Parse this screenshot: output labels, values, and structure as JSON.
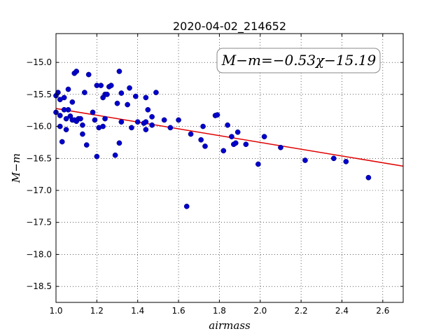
{
  "chart_data": {
    "type": "scatter",
    "title": "2020-04-02_214652",
    "xlabel": "airmass",
    "ylabel": "M−m",
    "xlim": [
      1.0,
      2.7
    ],
    "ylim": [
      -18.75,
      -14.55
    ],
    "y_inverted": true,
    "grid": true,
    "x_ticks": [
      1.0,
      1.2,
      1.4,
      1.6,
      1.8,
      2.0,
      2.2,
      2.4,
      2.6
    ],
    "x_tick_labels": [
      "1.0",
      "1.2",
      "1.4",
      "1.6",
      "1.8",
      "2.0",
      "2.2",
      "2.4",
      "2.6"
    ],
    "y_ticks": [
      -15.0,
      -15.5,
      -16.0,
      -16.5,
      -17.0,
      -17.5,
      -18.0,
      -18.5
    ],
    "y_tick_labels": [
      "−15.0",
      "−15.5",
      "−16.0",
      "−16.5",
      "−17.0",
      "−17.5",
      "−18.0",
      "−18.5"
    ],
    "annotation": "M−m=−0.53χ−15.19",
    "fit": {
      "slope": -0.53,
      "intercept": -15.19,
      "color": "#e00000"
    },
    "point_color": "#0000cc",
    "series": [
      {
        "points": [
          [
            1.0,
            -15.52
          ],
          [
            1.0,
            -15.78
          ],
          [
            1.01,
            -15.47
          ],
          [
            1.02,
            -15.83
          ],
          [
            1.02,
            -16.0
          ],
          [
            1.02,
            -15.58
          ],
          [
            1.03,
            -16.24
          ],
          [
            1.04,
            -15.55
          ],
          [
            1.04,
            -15.74
          ],
          [
            1.05,
            -15.88
          ],
          [
            1.05,
            -16.05
          ],
          [
            1.06,
            -15.42
          ],
          [
            1.06,
            -15.74
          ],
          [
            1.07,
            -15.84
          ],
          [
            1.08,
            -15.62
          ],
          [
            1.08,
            -15.9
          ],
          [
            1.09,
            -15.17
          ],
          [
            1.09,
            -15.9
          ],
          [
            1.1,
            -15.14
          ],
          [
            1.1,
            -15.92
          ],
          [
            1.11,
            -15.88
          ],
          [
            1.12,
            -15.88
          ],
          [
            1.13,
            -15.98
          ],
          [
            1.13,
            -16.12
          ],
          [
            1.14,
            -15.47
          ],
          [
            1.15,
            -16.29
          ],
          [
            1.16,
            -15.19
          ],
          [
            1.18,
            -15.78
          ],
          [
            1.19,
            -15.9
          ],
          [
            1.2,
            -15.36
          ],
          [
            1.2,
            -16.47
          ],
          [
            1.21,
            -16.02
          ],
          [
            1.22,
            -15.36
          ],
          [
            1.23,
            -16.0
          ],
          [
            1.23,
            -15.55
          ],
          [
            1.24,
            -15.5
          ],
          [
            1.24,
            -15.88
          ],
          [
            1.25,
            -15.5
          ],
          [
            1.26,
            -15.38
          ],
          [
            1.27,
            -15.36
          ],
          [
            1.29,
            -16.45
          ],
          [
            1.3,
            -15.64
          ],
          [
            1.31,
            -15.14
          ],
          [
            1.31,
            -16.26
          ],
          [
            1.32,
            -15.48
          ],
          [
            1.32,
            -15.93
          ],
          [
            1.35,
            -15.66
          ],
          [
            1.36,
            -15.4
          ],
          [
            1.37,
            -16.02
          ],
          [
            1.39,
            -15.53
          ],
          [
            1.4,
            -15.93
          ],
          [
            1.43,
            -15.95
          ],
          [
            1.44,
            -15.55
          ],
          [
            1.44,
            -16.05
          ],
          [
            1.44,
            -15.93
          ],
          [
            1.45,
            -15.74
          ],
          [
            1.47,
            -15.85
          ],
          [
            1.47,
            -15.98
          ],
          [
            1.49,
            -15.47
          ],
          [
            1.53,
            -15.9
          ],
          [
            1.56,
            -16.02
          ],
          [
            1.6,
            -15.9
          ],
          [
            1.64,
            -17.25
          ],
          [
            1.66,
            -16.12
          ],
          [
            1.71,
            -16.21
          ],
          [
            1.72,
            -16.0
          ],
          [
            1.73,
            -16.31
          ],
          [
            1.78,
            -15.83
          ],
          [
            1.79,
            -15.82
          ],
          [
            1.82,
            -16.38
          ],
          [
            1.84,
            -15.98
          ],
          [
            1.86,
            -16.16
          ],
          [
            1.87,
            -16.28
          ],
          [
            1.88,
            -16.26
          ],
          [
            1.89,
            -16.09
          ],
          [
            1.93,
            -16.28
          ],
          [
            1.99,
            -16.59
          ],
          [
            2.02,
            -16.16
          ],
          [
            2.1,
            -16.33
          ],
          [
            2.22,
            -16.53
          ],
          [
            2.36,
            -16.5
          ],
          [
            2.42,
            -16.55
          ],
          [
            2.53,
            -16.8
          ]
        ]
      }
    ]
  }
}
